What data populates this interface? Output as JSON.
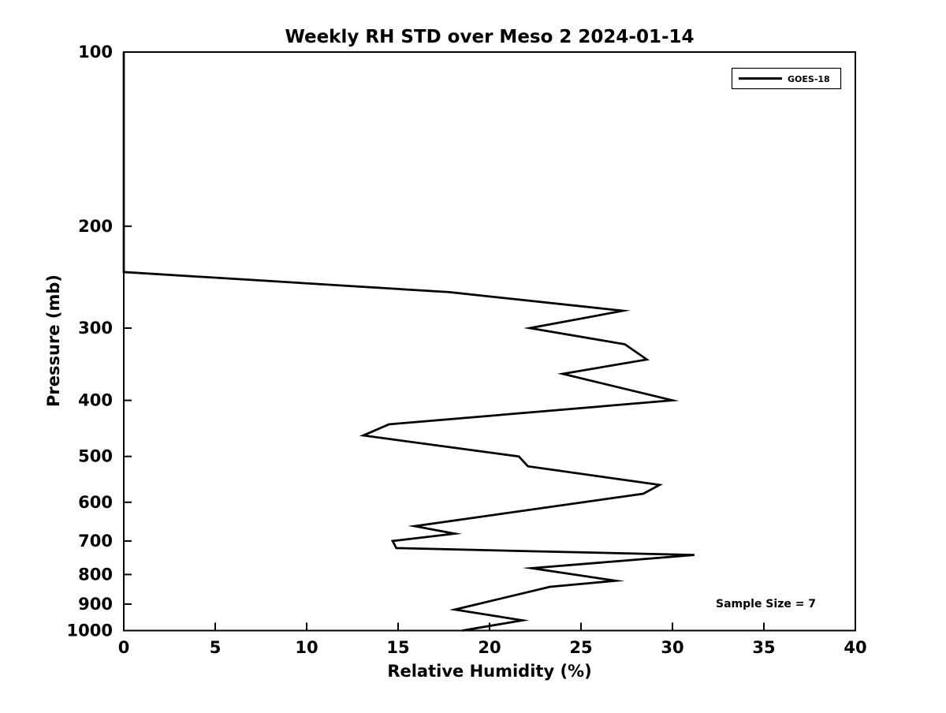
{
  "page": {
    "background": "#ffffff"
  },
  "chart_data": {
    "type": "line",
    "title": "Weekly RH STD over Meso 2 2024-01-14",
    "xlabel": "Relative Humidity (%)",
    "ylabel": "Pressure (mb)",
    "xlim": [
      0,
      40
    ],
    "ylim": [
      100,
      1000
    ],
    "y_scale": "log",
    "y_inverted": true,
    "x_ticks": [
      0,
      5,
      10,
      15,
      20,
      25,
      30,
      35,
      40
    ],
    "y_ticks": [
      100,
      200,
      300,
      400,
      500,
      600,
      700,
      800,
      900,
      1000
    ],
    "grid": false,
    "box": true,
    "tick_direction": "in",
    "legend_position": "top-right",
    "annotation": "Sample Size = 7",
    "axis_color": "#000000",
    "text_color": "#000000",
    "series": [
      {
        "name": "GOES-18",
        "color": "#000000",
        "line_width": 2.75,
        "pressure_mb": [
          100,
          240,
          260,
          280,
          300,
          320,
          340,
          360,
          400,
          440,
          460,
          500,
          520,
          560,
          580,
          660,
          680,
          700,
          720,
          740,
          780,
          820,
          840,
          920,
          960,
          1000
        ],
        "rh_std_pct": [
          0,
          0,
          17.8,
          27.3,
          22.2,
          27.4,
          28.6,
          24.0,
          30.0,
          14.5,
          13.1,
          21.6,
          22.1,
          29.3,
          28.4,
          15.9,
          18.1,
          14.7,
          14.9,
          31.2,
          22.3,
          26.9,
          23.3,
          18.1,
          21.8,
          18.5
        ]
      }
    ]
  }
}
